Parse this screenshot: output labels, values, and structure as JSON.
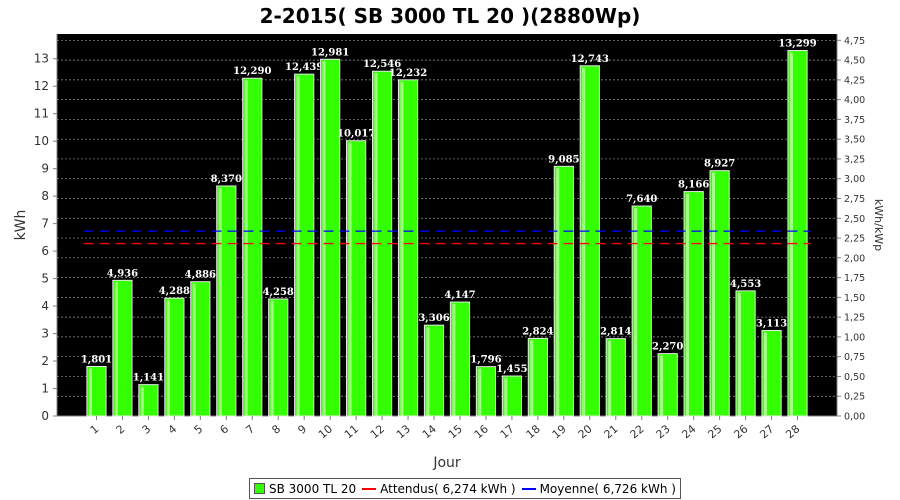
{
  "chart_data": {
    "type": "bar",
    "title": "2-2015( SB 3000 TL 20 )(2880Wp)",
    "xlabel": "Jour",
    "ylabel": "kWh",
    "y2label": "kWh/kWp",
    "categories": [
      "1",
      "2",
      "3",
      "4",
      "5",
      "6",
      "7",
      "8",
      "9",
      "10",
      "11",
      "12",
      "13",
      "14",
      "15",
      "16",
      "17",
      "18",
      "19",
      "20",
      "21",
      "22",
      "23",
      "24",
      "25",
      "26",
      "27",
      "28"
    ],
    "series": [
      {
        "name": "SB 3000 TL 20",
        "values": [
          1.801,
          4.936,
          1.141,
          4.288,
          4.886,
          8.37,
          12.29,
          4.258,
          12.439,
          12.981,
          10.017,
          12.546,
          12.232,
          3.306,
          4.147,
          1.796,
          1.455,
          2.824,
          9.085,
          12.743,
          2.814,
          7.64,
          2.27,
          8.166,
          8.927,
          4.553,
          3.113,
          13.299
        ],
        "labels": [
          "1,801",
          "4,936",
          "1,141",
          "4,288",
          "4,886",
          "8,370",
          "12,290",
          "4,258",
          "12,439",
          "12,981",
          "10,017",
          "12,546",
          "12,232",
          "3,306",
          "4,147",
          "1,796",
          "1,455",
          "2,824",
          "9,085",
          "12,743",
          "2,814",
          "7,640",
          "2,270",
          "8,166",
          "8,927",
          "4,553",
          "3,113",
          "13,299"
        ],
        "color": "#33ff00"
      }
    ],
    "reference_lines": [
      {
        "name": "Attendus( 6,274 kWh )",
        "value": 6.274,
        "color": "#ff0000"
      },
      {
        "name": "Moyenne( 6,726 kWh )",
        "value": 6.726,
        "color": "#0000ff"
      }
    ],
    "ylim": [
      0,
      13.9
    ],
    "yticks": [
      "0",
      "1",
      "2",
      "3",
      "4",
      "5",
      "6",
      "7",
      "8",
      "9",
      "10",
      "11",
      "12",
      "13"
    ],
    "y2lim": [
      0,
      4.83
    ],
    "y2ticks": [
      "0,00",
      "0,25",
      "0,50",
      "0,75",
      "1,00",
      "1,25",
      "1,50",
      "1,75",
      "2,00",
      "2,25",
      "2,50",
      "2,75",
      "3,00",
      "3,25",
      "3,50",
      "3,75",
      "4,00",
      "4,25",
      "4,50",
      "4,75"
    ],
    "grid": true,
    "legend_position": "bottom",
    "background": "#000000"
  }
}
